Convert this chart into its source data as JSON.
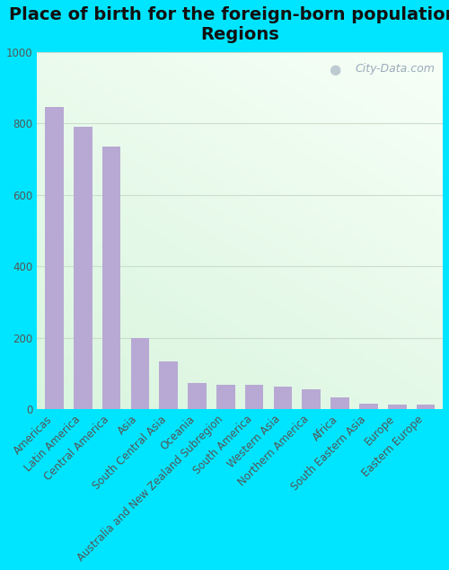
{
  "title": "Place of birth for the foreign-born population -\nRegions",
  "categories": [
    "Americas",
    "Latin America",
    "Central America",
    "Asia",
    "South Central Asia",
    "Oceania",
    "Australia and New Zealand Subregion",
    "South America",
    "Western Asia",
    "Northern America",
    "Africa",
    "South Eastern Asia",
    "Europe",
    "Eastern Europe"
  ],
  "values": [
    845,
    790,
    735,
    200,
    133,
    72,
    69,
    67,
    63,
    56,
    32,
    14,
    12,
    12
  ],
  "bar_color": "#b8a9d4",
  "outer_background": "#00e5ff",
  "ylim": [
    0,
    1000
  ],
  "yticks": [
    0,
    200,
    400,
    600,
    800,
    1000
  ],
  "title_fontsize": 14,
  "tick_label_fontsize": 8.5,
  "tick_label_color": "#555555",
  "ytick_label_color": "#555555",
  "watermark_text": "City-Data.com",
  "watermark_color": "#99aabb",
  "grid_color": "#ccddcc",
  "bar_width": 0.65
}
